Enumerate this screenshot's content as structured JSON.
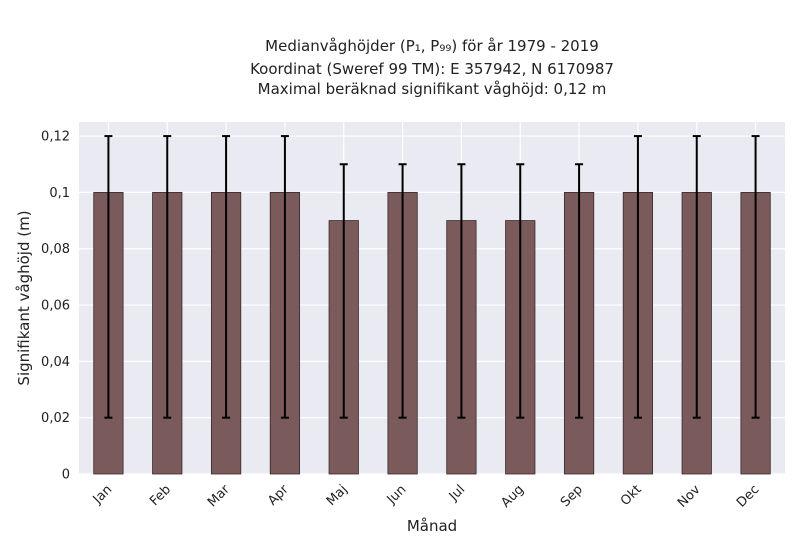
{
  "chart_data": {
    "type": "bar",
    "title_lines": [
      "Medianvåghöjder (P₁, P₉₉) för år 1979 - 2019",
      "Koordinat (Sweref 99 TM): E 357942, N 6170987",
      "Maximal beräknad signifikant våghöjd: 0,12 m"
    ],
    "xlabel": "Månad",
    "ylabel": "Signifikant våghöjd (m)",
    "categories": [
      "Jan",
      "Feb",
      "Mar",
      "Apr",
      "Maj",
      "Jun",
      "Jul",
      "Aug",
      "Sep",
      "Okt",
      "Nov",
      "Dec"
    ],
    "values": [
      0.1,
      0.1,
      0.1,
      0.1,
      0.09,
      0.1,
      0.09,
      0.09,
      0.1,
      0.1,
      0.1,
      0.1
    ],
    "error_low": [
      0.02,
      0.02,
      0.02,
      0.02,
      0.02,
      0.02,
      0.02,
      0.02,
      0.02,
      0.02,
      0.02,
      0.02
    ],
    "error_high": [
      0.12,
      0.12,
      0.12,
      0.12,
      0.11,
      0.11,
      0.11,
      0.11,
      0.11,
      0.12,
      0.12,
      0.12
    ],
    "ylim": [
      0,
      0.125
    ],
    "yticks": [
      0,
      0.02,
      0.04,
      0.06,
      0.08,
      0.1,
      0.12
    ],
    "ytick_labels": [
      "0",
      "0,02",
      "0,04",
      "0,06",
      "0,08",
      "0,1",
      "0,12"
    ],
    "grid": true,
    "colors": {
      "bar": "#7a5a5a",
      "bar_edge": "#3a2a2a",
      "error_bar": "#000000",
      "plot_background": "#eaeaf2",
      "grid": "#ffffff"
    }
  }
}
